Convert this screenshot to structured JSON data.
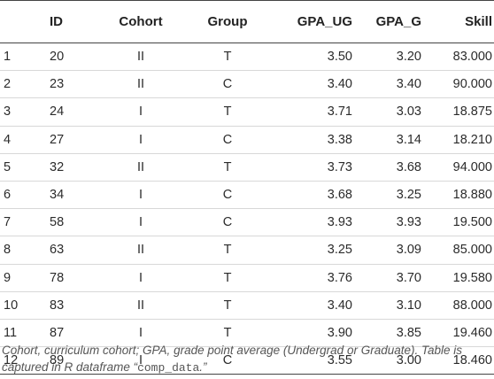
{
  "table": {
    "headers": {
      "row": "",
      "id": "ID",
      "cohort": "Cohort",
      "group": "Group",
      "gpa_ug": "GPA_UG",
      "gpa_g": "GPA_G",
      "skill": "Skill"
    },
    "rows": [
      {
        "n": "1",
        "id": "20",
        "cohort": "II",
        "group": "T",
        "gpa_ug": "3.50",
        "gpa_g": "3.20",
        "skill": "83.000"
      },
      {
        "n": "2",
        "id": "23",
        "cohort": "II",
        "group": "C",
        "gpa_ug": "3.40",
        "gpa_g": "3.40",
        "skill": "90.000"
      },
      {
        "n": "3",
        "id": "24",
        "cohort": "I",
        "group": "T",
        "gpa_ug": "3.71",
        "gpa_g": "3.03",
        "skill": "18.875"
      },
      {
        "n": "4",
        "id": "27",
        "cohort": "I",
        "group": "C",
        "gpa_ug": "3.38",
        "gpa_g": "3.14",
        "skill": "18.210"
      },
      {
        "n": "5",
        "id": "32",
        "cohort": "II",
        "group": "T",
        "gpa_ug": "3.73",
        "gpa_g": "3.68",
        "skill": "94.000"
      },
      {
        "n": "6",
        "id": "34",
        "cohort": "I",
        "group": "C",
        "gpa_ug": "3.68",
        "gpa_g": "3.25",
        "skill": "18.880"
      },
      {
        "n": "7",
        "id": "58",
        "cohort": "I",
        "group": "C",
        "gpa_ug": "3.93",
        "gpa_g": "3.93",
        "skill": "19.500"
      },
      {
        "n": "8",
        "id": "63",
        "cohort": "II",
        "group": "T",
        "gpa_ug": "3.25",
        "gpa_g": "3.09",
        "skill": "85.000"
      },
      {
        "n": "9",
        "id": "78",
        "cohort": "I",
        "group": "T",
        "gpa_ug": "3.76",
        "gpa_g": "3.70",
        "skill": "19.580"
      },
      {
        "n": "10",
        "id": "83",
        "cohort": "II",
        "group": "T",
        "gpa_ug": "3.40",
        "gpa_g": "3.10",
        "skill": "88.000"
      },
      {
        "n": "11",
        "id": "87",
        "cohort": "I",
        "group": "T",
        "gpa_ug": "3.90",
        "gpa_g": "3.85",
        "skill": "19.460"
      },
      {
        "n": "12",
        "id": "89",
        "cohort": "I",
        "group": "C",
        "gpa_ug": "3.55",
        "gpa_g": "3.00",
        "skill": "18.460"
      }
    ]
  },
  "footnote": {
    "line_before_code": "Cohort, curriculum cohort; GPA, grade point average (Undergrad or Graduate). Table is captured in R dataframe “",
    "code": "comp_data",
    "line_after_code": ".”"
  }
}
